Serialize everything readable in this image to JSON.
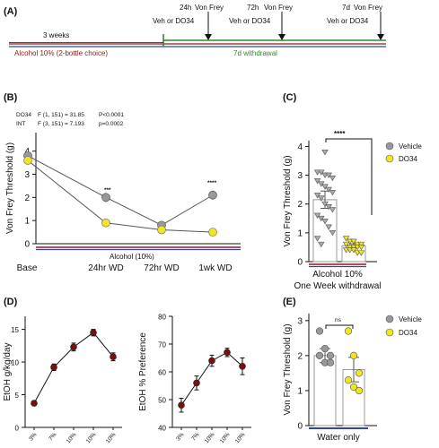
{
  "panel_labels": [
    "(A)",
    "(B)",
    "(C)",
    "(D)",
    "(E)"
  ],
  "timeline": {
    "three_weeks": "3 weeks",
    "alcohol_phase": "Alcohol 10% (2-bottle choice)",
    "withdrawal_phase": "7d withdrawal",
    "events": [
      {
        "time": "24h",
        "test": "Von Frey",
        "treatment": "Veh or DO34"
      },
      {
        "time": "72h",
        "test": "Von Frey",
        "treatment": "Veh or DO34"
      },
      {
        "time": "7d",
        "test": "Von Frey",
        "treatment": "Veh or DO34"
      }
    ],
    "colors": {
      "alcohol": "#8b1a1a",
      "withdrawal": "#2e8b2e",
      "baseline": "#3344aa"
    }
  },
  "panel_b": {
    "stats": [
      {
        "term": "DO34",
        "f": "F (1, 151) = 31.85",
        "p": "P<0.0001"
      },
      {
        "term": "INT",
        "f": "F (3, 151) = 7.193",
        "p": "p=0.0002"
      }
    ],
    "bar_label": "Alcohol (10%)",
    "significance": [
      "***",
      "****"
    ]
  },
  "panel_c": {
    "significance": "****",
    "x_label_line1": "Alcohol 10%",
    "x_label_line2": "One Week withdrawal"
  },
  "panel_e": {
    "significance": "ns",
    "x_label": "Water only"
  },
  "legend": {
    "vehicle": "Vehicle",
    "do34": "DO34",
    "vehicle_color": "#999999",
    "do34_color": "#f2e51b"
  },
  "chart_data": [
    {
      "type": "line",
      "x": [
        "Base",
        "24hr WD",
        "72hr WD",
        "1wk WD"
      ],
      "series": [
        {
          "name": "Vehicle",
          "values": [
            3.8,
            2.0,
            0.8,
            2.1
          ],
          "errors": [
            0.15,
            0.2,
            0.1,
            0.2
          ]
        },
        {
          "name": "DO34",
          "values": [
            3.6,
            0.9,
            0.6,
            0.5
          ],
          "errors": [
            0.15,
            0.1,
            0.05,
            0.05
          ]
        }
      ],
      "ylabel": "Von Frey Threshold (g)",
      "yticks": [
        0,
        1,
        2,
        3,
        4
      ],
      "ylim": [
        0,
        4.8
      ]
    },
    {
      "type": "bar",
      "categories": [
        "Vehicle",
        "DO34"
      ],
      "values": [
        2.15,
        0.55
      ],
      "errors": [
        0.3,
        0.07
      ],
      "points": [
        [
          3.1,
          3.1,
          3.0,
          3.0,
          2.9,
          2.8,
          2.7,
          2.6,
          2.5,
          2.4,
          2.3,
          2.2,
          2.0,
          1.9,
          1.8,
          1.6,
          1.5,
          1.4,
          1.2,
          1.0,
          0.8,
          0.6,
          3.8
        ],
        [
          0.8,
          0.7,
          0.7,
          0.6,
          0.6,
          0.6,
          0.5,
          0.5,
          0.5,
          0.5,
          0.4,
          0.4,
          0.4,
          0.3,
          0.3
        ]
      ],
      "ylabel": "Von Frey Threshold (g)",
      "yticks": [
        0,
        1,
        2,
        3,
        4
      ],
      "ylim": [
        0,
        4.2
      ]
    },
    {
      "type": "line",
      "x": [
        "3%",
        "7%",
        "10%",
        "10%",
        "10%"
      ],
      "values": [
        3.7,
        9.2,
        12.3,
        14.5,
        10.8
      ],
      "errors": [
        0.3,
        0.5,
        0.6,
        0.5,
        0.6
      ],
      "ylabel": "EtOH g/kg/day",
      "yticks": [
        0,
        5,
        10,
        15
      ],
      "ylim": [
        0,
        17
      ]
    },
    {
      "type": "line",
      "x": [
        "3%",
        "7%",
        "10%",
        "10%",
        "10%"
      ],
      "values": [
        48,
        56,
        64,
        67,
        62
      ],
      "errors": [
        2.5,
        2.5,
        2.0,
        1.5,
        3.0
      ],
      "ylabel": "EtOH % Preference",
      "yticks": [
        40,
        50,
        60,
        70,
        80
      ],
      "ylim": [
        40,
        80
      ]
    },
    {
      "type": "bar",
      "categories": [
        "Vehicle",
        "DO34"
      ],
      "values": [
        2.0,
        1.6
      ],
      "errors": [
        0.2,
        0.35
      ],
      "points": [
        [
          2.7,
          2.2,
          2.0,
          2.0,
          1.8,
          1.8
        ],
        [
          2.7,
          2.0,
          1.5,
          1.3,
          1.1,
          1.0
        ]
      ],
      "ylabel": "Von Frey Threshold (g)",
      "yticks": [
        0,
        1,
        2,
        3
      ],
      "ylim": [
        0,
        3.2
      ]
    }
  ]
}
